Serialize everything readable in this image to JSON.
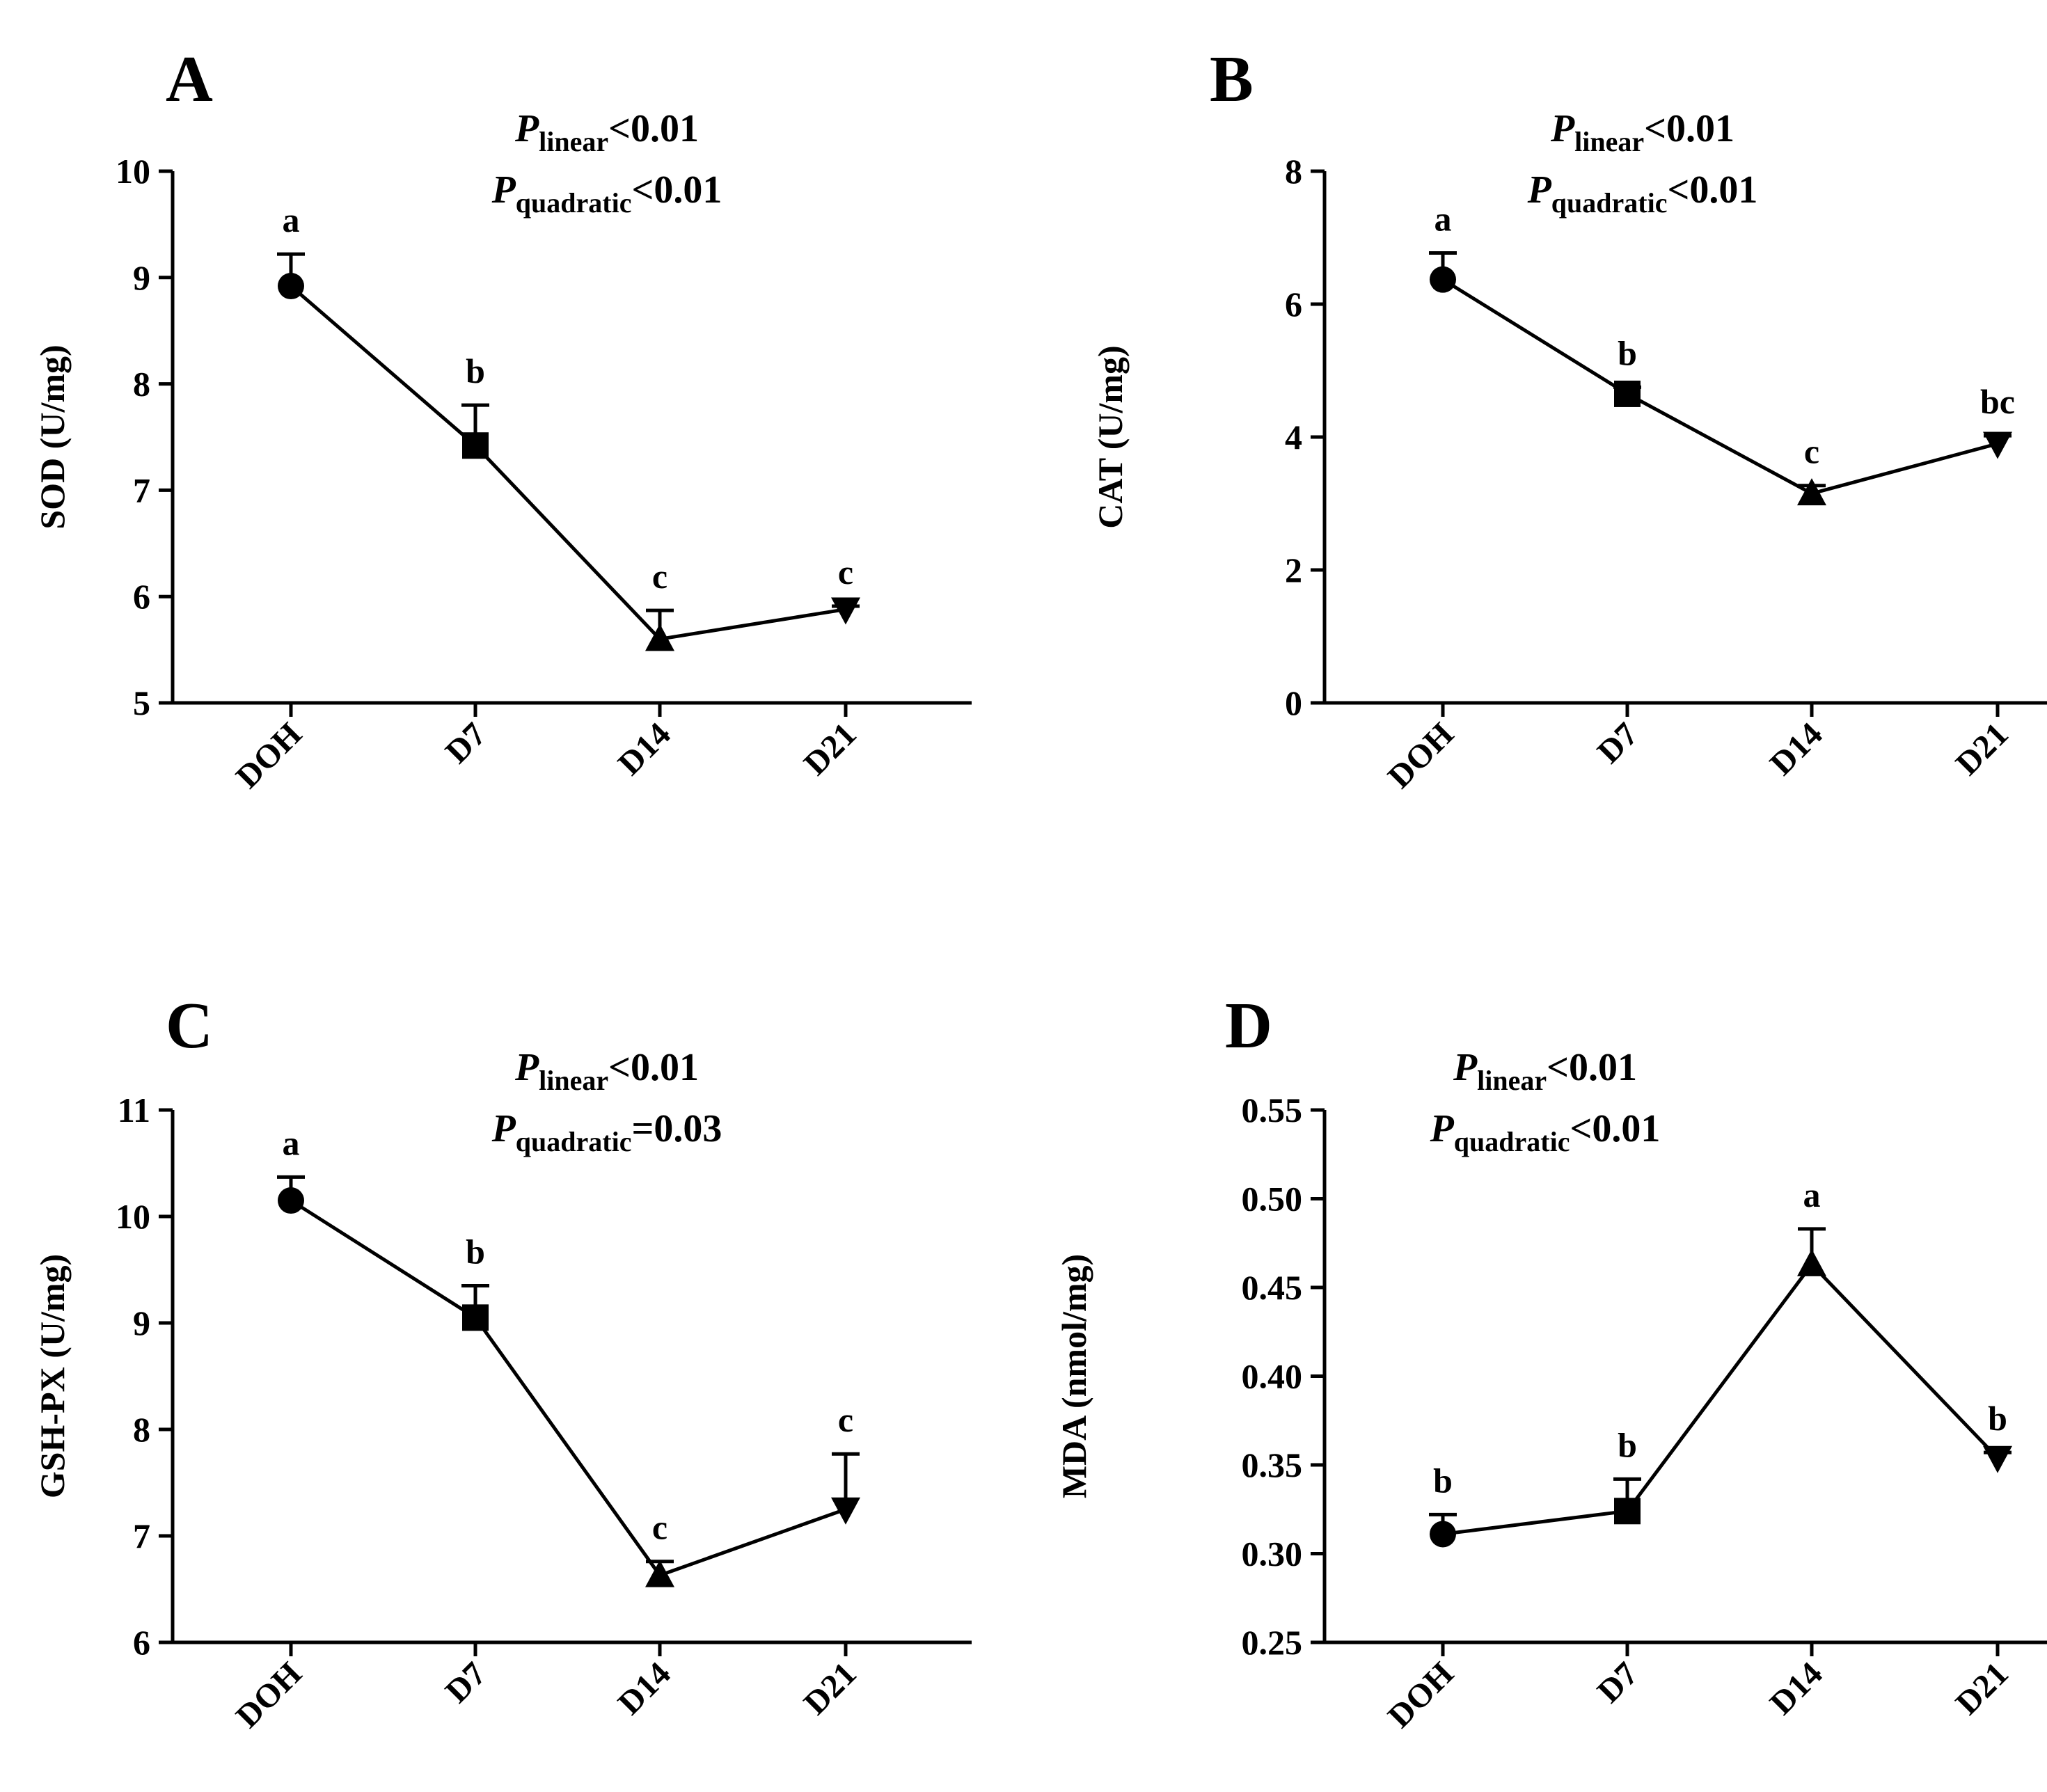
{
  "chart_data": [
    {
      "type": "line",
      "panel": "A",
      "ylabel": "SOD (U/mg)",
      "ylim": [
        5,
        10
      ],
      "yticks": [
        5,
        6,
        7,
        8,
        9,
        10
      ],
      "yticklabels": [
        "5",
        "6",
        "7",
        "8",
        "9",
        "10"
      ],
      "categories": [
        "DOH",
        "D7",
        "D14",
        "D21"
      ],
      "values": [
        8.92,
        7.42,
        5.6,
        5.88
      ],
      "errors": [
        0.3,
        0.38,
        0.27,
        0.03
      ],
      "markers": [
        "circle",
        "square",
        "triangle-up",
        "triangle-down"
      ],
      "significance": [
        "a",
        "b",
        "c",
        "c"
      ],
      "annotation": {
        "line1": {
          "p": "P",
          "sub": "linear",
          "rest": "<0.01"
        },
        "line2": {
          "p": "P",
          "sub": "quadratic",
          "rest": "<0.01"
        }
      }
    },
    {
      "type": "line",
      "panel": "B",
      "ylabel": "CAT (U/mg)",
      "ylim": [
        0,
        8
      ],
      "yticks": [
        0,
        2,
        4,
        6,
        8
      ],
      "yticklabels": [
        "0",
        "2",
        "4",
        "6",
        "8"
      ],
      "categories": [
        "DOH",
        "D7",
        "D14",
        "D21"
      ],
      "values": [
        6.37,
        4.65,
        3.15,
        3.9
      ],
      "errors": [
        0.4,
        0.1,
        0.12,
        0.12
      ],
      "markers": [
        "circle",
        "square",
        "triangle-up",
        "triangle-down"
      ],
      "significance": [
        "a",
        "b",
        "c",
        "bc"
      ],
      "annotation": {
        "line1": {
          "p": "P",
          "sub": "linear",
          "rest": "<0.01"
        },
        "line2": {
          "p": "P",
          "sub": "quadratic",
          "rest": "<0.01"
        }
      }
    },
    {
      "type": "line",
      "panel": "C",
      "ylabel": "GSH-PX (U/mg)",
      "ylim": [
        6,
        11
      ],
      "yticks": [
        6,
        7,
        8,
        9,
        10,
        11
      ],
      "yticklabels": [
        "6",
        "7",
        "8",
        "9",
        "10",
        "11"
      ],
      "categories": [
        "DOH",
        "D7",
        "D14",
        "D21"
      ],
      "values": [
        10.15,
        9.05,
        6.63,
        7.25
      ],
      "errors": [
        0.22,
        0.3,
        0.13,
        0.52
      ],
      "markers": [
        "circle",
        "square",
        "triangle-up",
        "triangle-down"
      ],
      "significance": [
        "a",
        "b",
        "c",
        "c"
      ],
      "annotation": {
        "line1": {
          "p": "P",
          "sub": "linear",
          "rest": "<0.01"
        },
        "line2": {
          "p": "P",
          "sub": "quadratic",
          "rest": "=0.03"
        }
      }
    },
    {
      "type": "line",
      "panel": "D",
      "ylabel": "MDA (nmol/mg)",
      "ylim": [
        0.25,
        0.55
      ],
      "yticks": [
        0.25,
        0.3,
        0.35,
        0.4,
        0.45,
        0.5,
        0.55
      ],
      "yticklabels": [
        "0.25",
        "0.30",
        "0.35",
        "0.40",
        "0.45",
        "0.50",
        "0.55"
      ],
      "categories": [
        "DOH",
        "D7",
        "D14",
        "D21"
      ],
      "values": [
        0.311,
        0.324,
        0.463,
        0.354
      ],
      "errors": [
        0.011,
        0.018,
        0.02,
        0.003
      ],
      "markers": [
        "circle",
        "square",
        "triangle-up",
        "triangle-down"
      ],
      "significance": [
        "b",
        "b",
        "a",
        "b"
      ],
      "annotation": {
        "line1": {
          "p": "P",
          "sub": "linear",
          "rest": "<0.01"
        },
        "line2": {
          "p": "P",
          "sub": "quadratic",
          "rest": "<0.01"
        }
      }
    }
  ]
}
